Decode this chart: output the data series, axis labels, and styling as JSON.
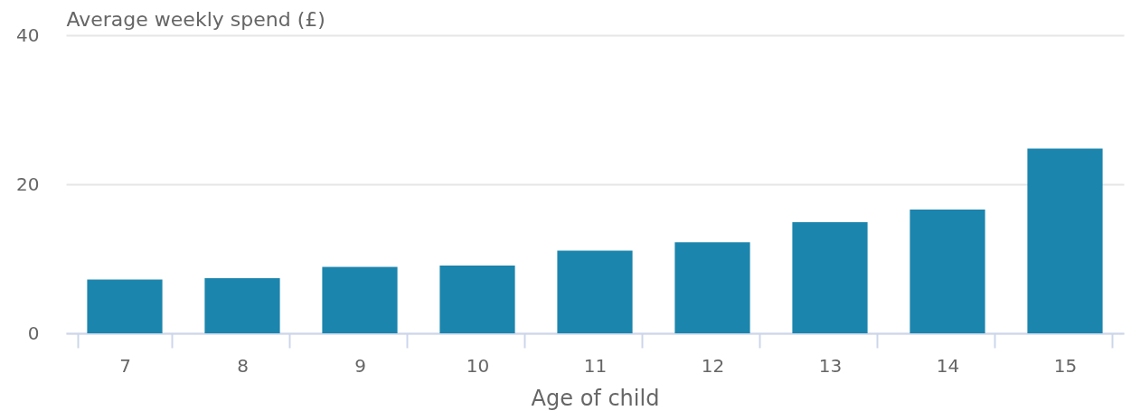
{
  "chart_data": {
    "type": "bar",
    "xlabel": "Age of child",
    "ylabel": "Average weekly spend (£)",
    "categories": [
      "7",
      "8",
      "9",
      "10",
      "11",
      "12",
      "13",
      "14",
      "15"
    ],
    "values": [
      7.2,
      7.4,
      8.9,
      9.1,
      11.1,
      12.2,
      14.9,
      16.6,
      24.8
    ],
    "color": "#1b85ad",
    "ylim": [
      0,
      40
    ],
    "yticks": [
      0,
      20,
      40
    ],
    "grid": "y"
  }
}
